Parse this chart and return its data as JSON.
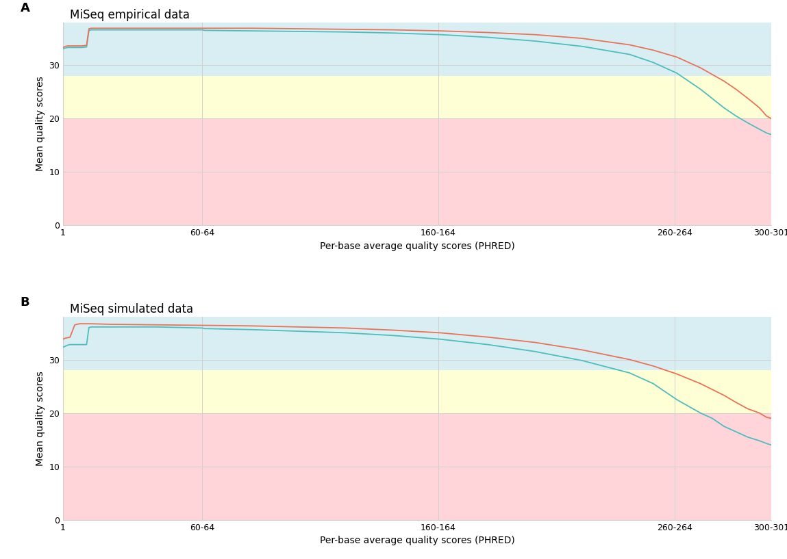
{
  "title_A": "MiSeq empirical data",
  "title_B": "MiSeq simulated data",
  "xlabel": "Per-base average quality scores (PHRED)",
  "ylabel": "Mean quality scores",
  "label_A": "A",
  "label_B": "B",
  "xtick_labels": [
    "1",
    "60-64",
    "160-164",
    "260-264",
    "300-301"
  ],
  "xtick_positions": [
    0,
    59,
    159,
    259,
    300
  ],
  "ytick_labels": [
    "0",
    "10",
    "20",
    "30"
  ],
  "ytick_positions": [
    0,
    10,
    20,
    30
  ],
  "ylim": [
    0,
    38
  ],
  "xlim": [
    0,
    300
  ],
  "bg_red_ymin": 0,
  "bg_red_ymax": 20,
  "bg_yellow_ymin": 20,
  "bg_yellow_ymax": 28,
  "bg_blue_ymin": 28,
  "bg_blue_ymax": 38,
  "bg_red_color": "#ffb3ba",
  "bg_yellow_color": "#ffffc8",
  "bg_blue_color": "#b8e0ea",
  "line_color_teal": "#4dbdbd",
  "line_color_red": "#e8735a",
  "empirical_teal_x": [
    0,
    1,
    2,
    3,
    5,
    8,
    10,
    11,
    12,
    20,
    40,
    59,
    60,
    80,
    100,
    120,
    140,
    160,
    180,
    200,
    220,
    240,
    250,
    260,
    270,
    280,
    285,
    290,
    295,
    298,
    300
  ],
  "empirical_teal_y": [
    33.0,
    33.2,
    33.3,
    33.3,
    33.3,
    33.3,
    33.4,
    36.5,
    36.6,
    36.6,
    36.6,
    36.6,
    36.5,
    36.4,
    36.3,
    36.2,
    36.0,
    35.7,
    35.2,
    34.5,
    33.5,
    32.0,
    30.5,
    28.5,
    25.5,
    22.0,
    20.5,
    19.2,
    18.0,
    17.3,
    17.0
  ],
  "empirical_red_x": [
    0,
    1,
    2,
    3,
    5,
    8,
    10,
    11,
    12,
    20,
    40,
    59,
    60,
    80,
    100,
    120,
    140,
    160,
    180,
    200,
    220,
    240,
    250,
    260,
    270,
    280,
    285,
    290,
    295,
    298,
    300
  ],
  "empirical_red_y": [
    33.3,
    33.5,
    33.6,
    33.6,
    33.6,
    33.6,
    33.7,
    36.8,
    36.9,
    36.9,
    36.9,
    36.9,
    36.9,
    36.9,
    36.8,
    36.7,
    36.6,
    36.4,
    36.1,
    35.7,
    35.0,
    33.8,
    32.8,
    31.5,
    29.5,
    27.0,
    25.5,
    23.8,
    22.0,
    20.5,
    20.0
  ],
  "simulated_teal_x": [
    0,
    1,
    2,
    3,
    5,
    8,
    10,
    11,
    12,
    20,
    40,
    59,
    60,
    80,
    100,
    120,
    140,
    160,
    180,
    200,
    220,
    240,
    250,
    260,
    270,
    275,
    280,
    285,
    290,
    295,
    298,
    300
  ],
  "simulated_teal_y": [
    32.3,
    32.5,
    32.7,
    32.8,
    32.8,
    32.8,
    32.8,
    36.0,
    36.1,
    36.1,
    36.1,
    35.9,
    35.8,
    35.6,
    35.3,
    35.0,
    34.5,
    33.8,
    32.8,
    31.5,
    29.8,
    27.5,
    25.5,
    22.5,
    20.0,
    19.0,
    17.5,
    16.5,
    15.5,
    14.8,
    14.3,
    14.0
  ],
  "simulated_red_x": [
    0,
    1,
    2,
    3,
    5,
    7,
    8,
    9,
    10,
    11,
    12,
    20,
    40,
    59,
    60,
    80,
    100,
    120,
    140,
    160,
    180,
    200,
    220,
    240,
    250,
    260,
    270,
    280,
    285,
    290,
    295,
    298,
    300
  ],
  "simulated_red_y": [
    33.8,
    34.0,
    34.1,
    34.2,
    36.5,
    36.7,
    36.7,
    36.7,
    36.7,
    36.7,
    36.7,
    36.6,
    36.5,
    36.4,
    36.4,
    36.3,
    36.1,
    35.9,
    35.5,
    35.0,
    34.2,
    33.2,
    31.8,
    30.0,
    28.8,
    27.3,
    25.5,
    23.3,
    22.0,
    20.8,
    20.0,
    19.2,
    19.0
  ],
  "grid_color": "#d0d0d0",
  "font_size_title": 12,
  "font_size_axis": 10,
  "font_size_tick": 9,
  "font_size_label": 13,
  "line_width": 1.3
}
